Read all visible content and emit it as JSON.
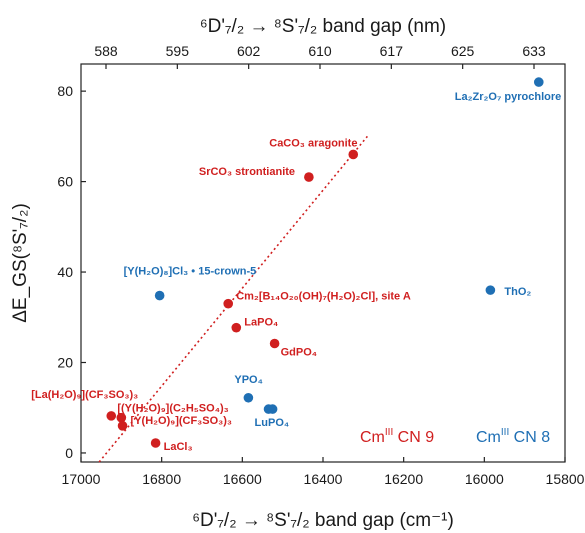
{
  "chart_data": {
    "type": "scatter",
    "x_axis": {
      "label_main": "⁶D'₇/₂ → ⁸S'₇/₂ band gap (cm⁻¹)",
      "reversed": true,
      "xlim": [
        17000,
        15800
      ],
      "ticks": [
        17000,
        16800,
        16600,
        16400,
        16200,
        16000,
        15800
      ],
      "tick_labels": [
        "17000",
        "16800",
        "16600",
        "16400",
        "16200",
        "16000",
        "15800"
      ]
    },
    "top_axis": {
      "label_main": "⁶D'₇/₂ → ⁸S'₇/₂ band gap (nm)",
      "ticks": [
        588,
        595,
        602,
        610,
        617,
        625,
        633
      ],
      "tick_labels": [
        "588",
        "595",
        "602",
        "610",
        "617",
        "625",
        "633"
      ]
    },
    "y_axis": {
      "label_main": "ΔE_GS(⁸S'₇/₂)",
      "ylim": [
        -2,
        86
      ],
      "ticks": [
        0,
        20,
        40,
        60,
        80
      ],
      "tick_labels": [
        "0",
        "20",
        "40",
        "60",
        "80"
      ]
    },
    "series": [
      {
        "name": "Cm CN 9",
        "color": "#d01f1f",
        "points": [
          {
            "x": 16325,
            "y": 66,
            "label": "CaCO₃ aragonite"
          },
          {
            "x": 16435,
            "y": 61,
            "label": "SrCO₃ strontianite"
          },
          {
            "x": 16635,
            "y": 33,
            "label": "Cm₂[B₁₄O₂₀(OH)₇(H₂O)₂Cl], site A"
          },
          {
            "x": 16615,
            "y": 27.7,
            "label": "LaPO₄"
          },
          {
            "x": 16520,
            "y": 24.2,
            "label": "GdPO₄"
          },
          {
            "x": 16925,
            "y": 8.2,
            "label": "[La(H₂O)₉](CF₃SO₃)₃"
          },
          {
            "x": 16900,
            "y": 7.8,
            "label": "[(Y(H₂O)₉](C₂H₅SO₄)₃"
          },
          {
            "x": 16897,
            "y": 6.0,
            "label": "[Y(H₂O)₉](CF₃SO₃)₃"
          },
          {
            "x": 16815,
            "y": 2.2,
            "label": "LaCl₃"
          }
        ]
      },
      {
        "name": "Cm CN 8",
        "color": "#1f6fb4",
        "points": [
          {
            "x": 15865,
            "y": 82,
            "label": "La₂Zr₂O₇ pyrochlore"
          },
          {
            "x": 16805,
            "y": 34.8,
            "label": "[Y(H₂O)₈]Cl₃ • 15-crown-5"
          },
          {
            "x": 15985,
            "y": 36,
            "label": "ThO₂"
          },
          {
            "x": 16585,
            "y": 12.2,
            "label": "YPO₄"
          },
          {
            "x": 16535,
            "y": 9.7,
            "label": "LuPO₄"
          },
          {
            "x": 16525,
            "y": 9.7,
            "label": ""
          }
        ]
      }
    ],
    "trendline": {
      "style": "dotted",
      "color": "#d01f1f",
      "from": {
        "x": 16955,
        "y": -2
      },
      "to": {
        "x": 16290,
        "y": 70
      }
    },
    "legend_text": [
      {
        "text": "Cm",
        "superscript": "III",
        "suffix": " CN 9",
        "color": "#d01f1f"
      },
      {
        "text": "Cm",
        "superscript": "III",
        "suffix": " CN 8",
        "color": "#1f6fb4"
      }
    ]
  }
}
